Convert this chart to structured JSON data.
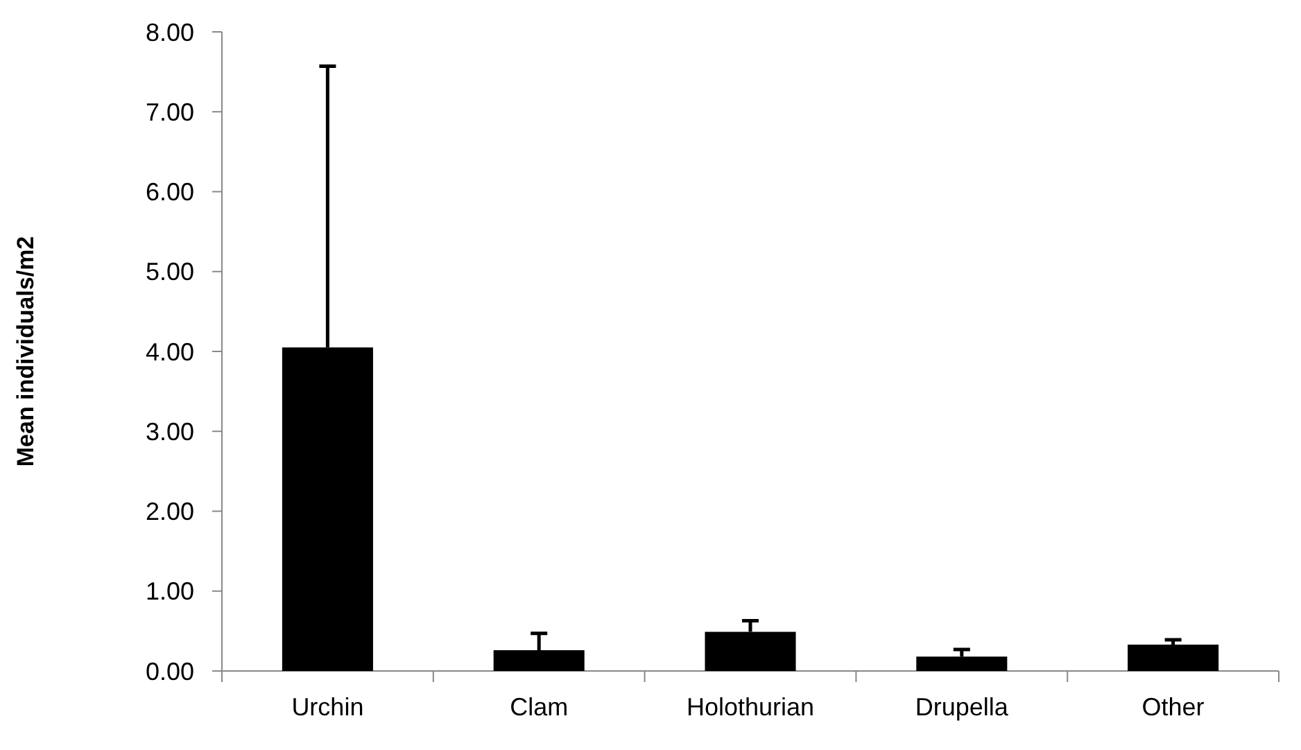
{
  "chart_data": {
    "type": "bar",
    "ylabel": "Mean individuals/m2",
    "categories": [
      "Urchin",
      "Clam",
      "Holothurian",
      "Drupella",
      "Other"
    ],
    "values": [
      4.05,
      0.26,
      0.49,
      0.18,
      0.33
    ],
    "errors": [
      [
        4.05,
        7.57
      ],
      [
        0.26,
        0.47
      ],
      [
        0.49,
        0.63
      ],
      [
        0.18,
        0.27
      ],
      [
        0.33,
        0.39
      ]
    ],
    "color": "#000000",
    "ylim": [
      0,
      8
    ],
    "yticks": [
      {
        "value": 0,
        "label": "0.00"
      },
      {
        "value": 1,
        "label": "1.00"
      },
      {
        "value": 2,
        "label": "2.00"
      },
      {
        "value": 3,
        "label": "3.00"
      },
      {
        "value": 4,
        "label": "4.00"
      },
      {
        "value": 5,
        "label": "5.00"
      },
      {
        "value": 6,
        "label": "6.00"
      },
      {
        "value": 7,
        "label": "7.00"
      },
      {
        "value": 8,
        "label": "8.00"
      }
    ],
    "grid": false
  }
}
